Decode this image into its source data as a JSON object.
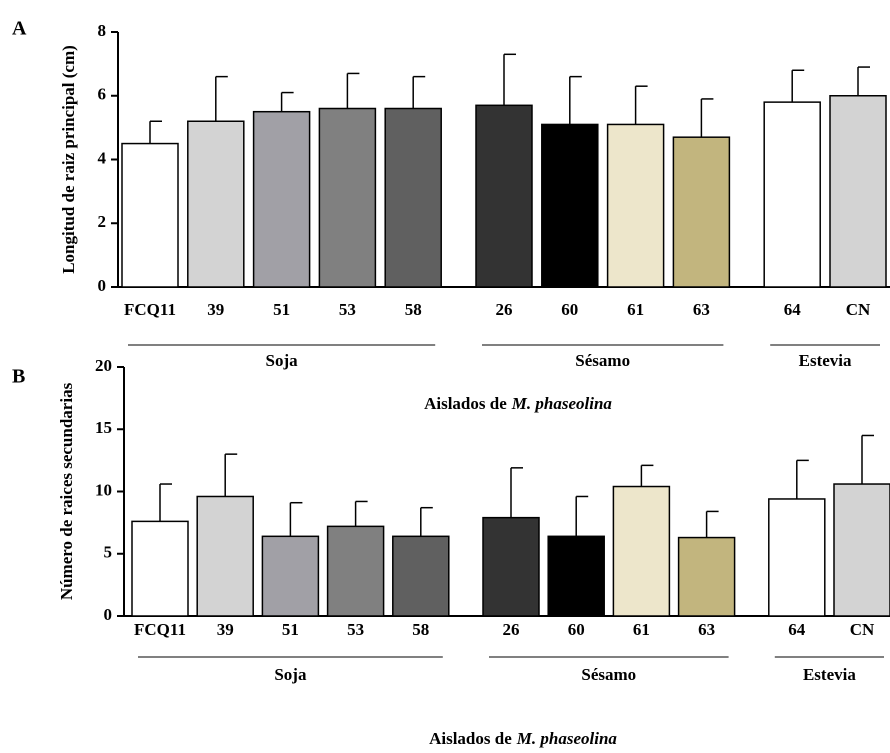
{
  "chart_data": [
    {
      "type": "bar",
      "panel": "A",
      "ylabel": "Longitud de raiz principal (cm)",
      "xlabel": "Aislados de",
      "xlabel_italic": "M. phaseolina",
      "categories": [
        "FCQ11",
        "39",
        "51",
        "53",
        "58",
        "26",
        "60",
        "61",
        "63",
        "64",
        "CN"
      ],
      "group_of": [
        "Soja",
        "Soja",
        "Soja",
        "Soja",
        "Soja",
        "Sésamo",
        "Sésamo",
        "Sésamo",
        "Sésamo",
        "Estevia",
        "Estevia"
      ],
      "values": [
        4.5,
        5.2,
        5.5,
        5.6,
        5.6,
        5.7,
        5.1,
        5.1,
        4.7,
        5.8,
        6.0
      ],
      "errors": [
        0.7,
        1.4,
        0.6,
        1.1,
        1.0,
        1.6,
        1.5,
        1.2,
        1.2,
        1.0,
        0.9
      ],
      "colors": [
        "#ffffff",
        "#d3d3d3",
        "#a1a0a6",
        "#808080",
        "#606060",
        "#333333",
        "#000000",
        "#ede6cb",
        "#c2b57e",
        "#ffffff",
        "#d3d3d3"
      ],
      "ylim": [
        0,
        8
      ],
      "yticks": [
        0,
        2,
        4,
        6,
        8
      ]
    },
    {
      "type": "bar",
      "panel": "B",
      "ylabel": "Número de raices secundarias",
      "xlabel": "Aislados de",
      "xlabel_italic": "M. phaseolina",
      "categories": [
        "FCQ11",
        "39",
        "51",
        "53",
        "58",
        "26",
        "60",
        "61",
        "63",
        "64",
        "CN"
      ],
      "group_of": [
        "Soja",
        "Soja",
        "Soja",
        "Soja",
        "Soja",
        "Sésamo",
        "Sésamo",
        "Sésamo",
        "Sésamo",
        "Estevia",
        "Estevia"
      ],
      "values": [
        7.6,
        9.6,
        6.4,
        7.2,
        6.4,
        7.9,
        6.4,
        10.4,
        6.3,
        9.4,
        10.6
      ],
      "errors": [
        3.0,
        3.4,
        2.7,
        2.0,
        2.3,
        4.0,
        3.2,
        1.7,
        2.1,
        3.1,
        3.9
      ],
      "colors": [
        "#ffffff",
        "#d3d3d3",
        "#a1a0a6",
        "#808080",
        "#606060",
        "#333333",
        "#000000",
        "#ede6cb",
        "#c2b57e",
        "#ffffff",
        "#d3d3d3"
      ],
      "ylim": [
        0,
        20
      ],
      "yticks": [
        0,
        5,
        10,
        15,
        20
      ]
    }
  ]
}
